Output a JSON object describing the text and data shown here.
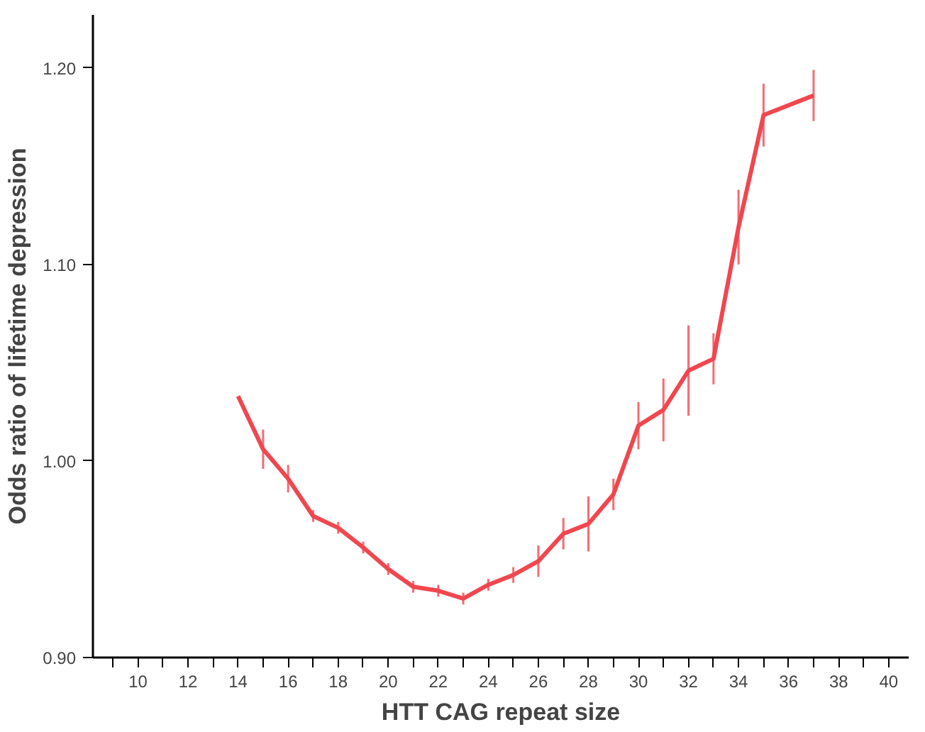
{
  "chart_data": {
    "type": "line",
    "xlabel": "HTT CAG repeat size",
    "ylabel": "Odds ratio of lifetime depression",
    "x": [
      14,
      15,
      16,
      17,
      18,
      19,
      20,
      21,
      22,
      23,
      24,
      25,
      26,
      27,
      28,
      29,
      30,
      31,
      32,
      33,
      34,
      35,
      37
    ],
    "series": [
      {
        "color": "#f0474f",
        "values": [
          1.033,
          1.006,
          0.991,
          0.972,
          0.966,
          0.956,
          0.945,
          0.936,
          0.934,
          0.93,
          0.937,
          0.942,
          0.949,
          0.963,
          0.968,
          0.983,
          1.018,
          1.026,
          1.046,
          1.052,
          1.119,
          1.176,
          1.186
        ],
        "errors": [
          null,
          0.01,
          0.007,
          0.003,
          0.003,
          0.003,
          0.003,
          0.003,
          0.003,
          0.003,
          0.003,
          0.004,
          0.008,
          0.008,
          0.014,
          0.008,
          0.012,
          0.016,
          0.023,
          0.013,
          0.019,
          0.016,
          0.013
        ]
      }
    ],
    "xlim": [
      8.2,
      40.8
    ],
    "ylim": [
      0.9,
      1.227
    ],
    "xticks": [
      {
        "value": 9,
        "label": null
      },
      10,
      {
        "value": 11,
        "label": null
      },
      12,
      {
        "value": 13,
        "label": null
      },
      14,
      {
        "value": 15,
        "label": null
      },
      16,
      {
        "value": 17,
        "label": null
      },
      18,
      {
        "value": 19,
        "label": null
      },
      20,
      {
        "value": 21,
        "label": null
      },
      22,
      {
        "value": 23,
        "label": null
      },
      24,
      {
        "value": 25,
        "label": null
      },
      26,
      {
        "value": 27,
        "label": null
      },
      28,
      {
        "value": 29,
        "label": null
      },
      30,
      {
        "value": 31,
        "label": null
      },
      32,
      {
        "value": 33,
        "label": null
      },
      34,
      {
        "value": 35,
        "label": null
      },
      36,
      {
        "value": 37,
        "label": null
      },
      38,
      {
        "value": 39,
        "label": null
      },
      40
    ],
    "yticks": [
      {
        "value": 0.9,
        "label": "0.90"
      },
      {
        "value": 1.0,
        "label": "1.00"
      },
      {
        "value": 1.1,
        "label": "1.10"
      },
      {
        "value": 1.2,
        "label": "1.20"
      }
    ],
    "grid": false,
    "marker": "none",
    "line_style": "solid"
  }
}
